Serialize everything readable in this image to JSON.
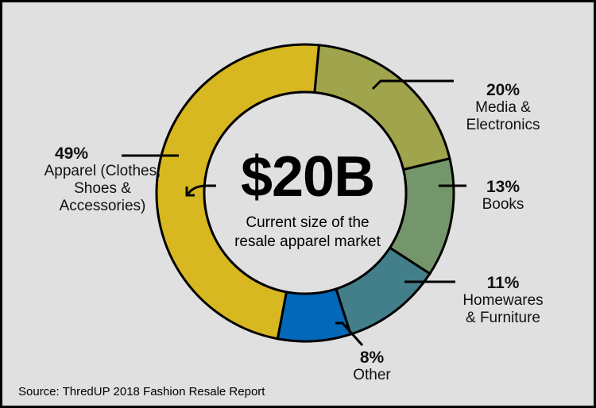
{
  "chart_data": {
    "type": "pie",
    "donut": true,
    "center_value": "$20B",
    "center_text": "Current size of the resale apparel market",
    "slices": [
      {
        "pct_label": "20%",
        "label": "Media & Electronics",
        "value": 20,
        "color": "#a0a44c"
      },
      {
        "pct_label": "13%",
        "label": "Books",
        "value": 13,
        "color": "#74966a"
      },
      {
        "pct_label": "11%",
        "label": "Homewares & Furniture",
        "value": 11,
        "color": "#437f8a"
      },
      {
        "pct_label": "8%",
        "label": "Other",
        "value": 8,
        "color": "#0468b8"
      },
      {
        "pct_label": "49%",
        "label": "Apparel (Clothes, Shoes & Accessories)",
        "value": 49,
        "color": "#d8b820"
      }
    ],
    "source": "Source: ThredUP 2018 Fashion Resale Report"
  }
}
